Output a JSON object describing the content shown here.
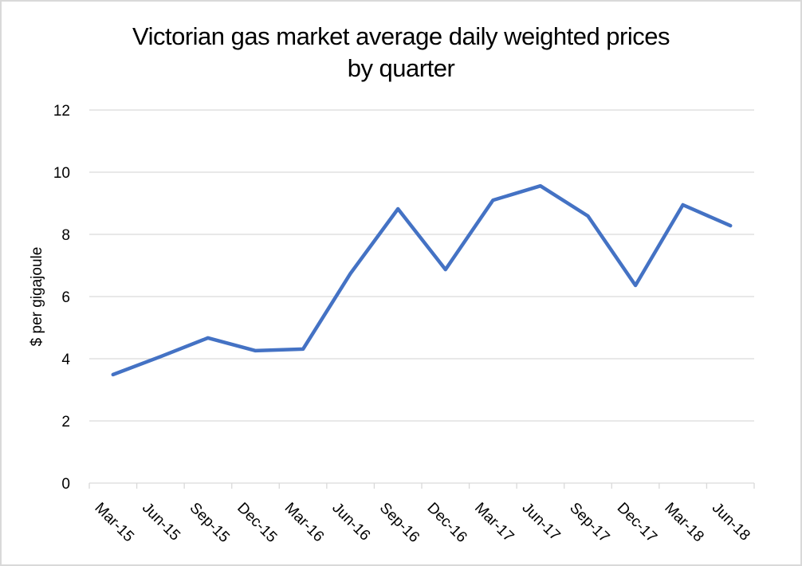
{
  "chart_data": {
    "type": "line",
    "title": "Victorian gas market average daily weighted prices by quarter",
    "title_lines": [
      "Victorian gas market average daily weighted prices",
      "by quarter"
    ],
    "xlabel": "",
    "ylabel": "$ per gigajoule",
    "ylim": [
      0,
      12
    ],
    "yticks": [
      0,
      2,
      4,
      6,
      8,
      10,
      12
    ],
    "grid": true,
    "legend": null,
    "categories": [
      "Mar-15",
      "Jun-15",
      "Sep-15",
      "Dec-15",
      "Mar-16",
      "Jun-16",
      "Sep-16",
      "Dec-16",
      "Mar-17",
      "Jun-17",
      "Sep-17",
      "Dec-17",
      "Mar-18",
      "Jun-18"
    ],
    "series": [
      {
        "name": "Average daily weighted price",
        "color": "#4472c4",
        "values": [
          3.49,
          4.07,
          4.67,
          4.26,
          4.31,
          6.74,
          8.82,
          6.87,
          9.1,
          9.56,
          8.59,
          6.36,
          8.95,
          8.28
        ]
      }
    ]
  }
}
